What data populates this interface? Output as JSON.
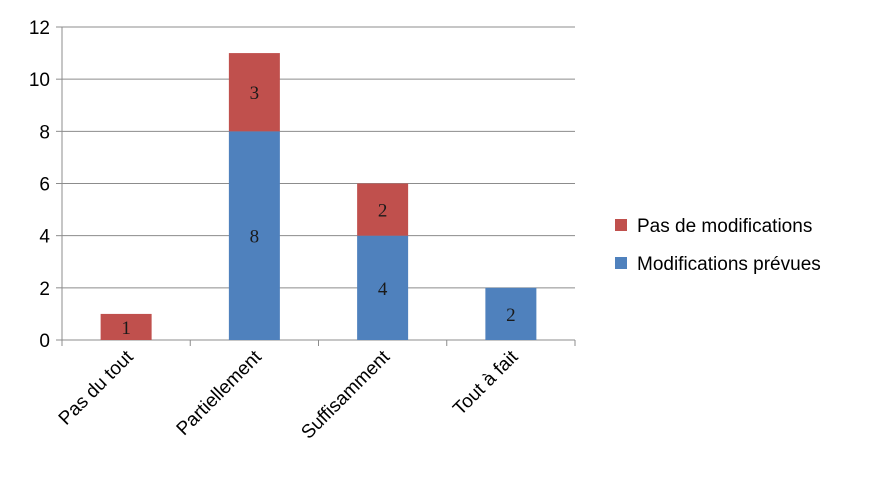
{
  "chart_data": {
    "type": "bar",
    "stacked": true,
    "categories": [
      "Pas du tout",
      "Partiellement",
      "Suffisamment",
      "Tout à fait"
    ],
    "series": [
      {
        "name": "Modifications prévues",
        "values": [
          0,
          8,
          4,
          2
        ],
        "color": "#4f81bd"
      },
      {
        "name": "Pas de modifications",
        "values": [
          1,
          3,
          2,
          0
        ],
        "color": "#c0504d"
      }
    ],
    "ylim": [
      0,
      12
    ],
    "yticks": [
      0,
      2,
      4,
      6,
      8,
      10,
      12
    ],
    "grid": true,
    "legend_position": "right",
    "data_labels": true
  }
}
